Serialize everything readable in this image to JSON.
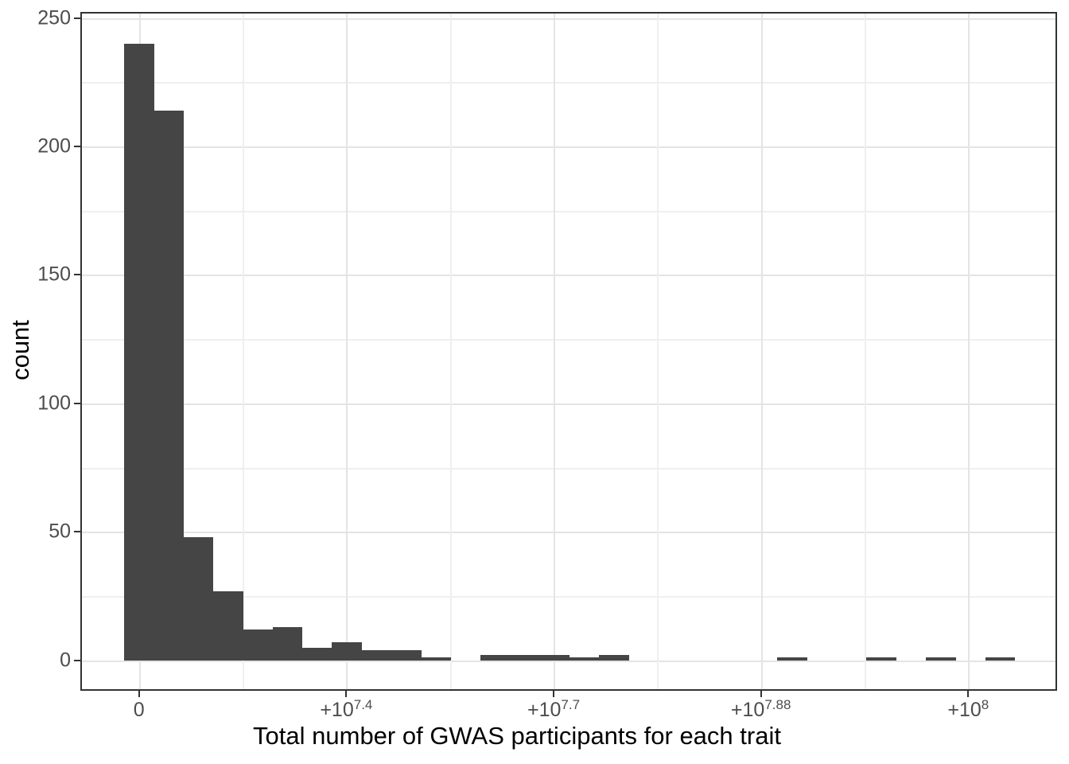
{
  "chart_data": {
    "type": "bar",
    "subtype": "histogram",
    "title": "",
    "xlabel": "Total number of GWAS participants for each trait",
    "ylabel": "count",
    "x_ticks": [
      {
        "base": "0",
        "sup": ""
      },
      {
        "base": "+10",
        "sup": "7.4"
      },
      {
        "base": "+10",
        "sup": "7.7"
      },
      {
        "base": "+10",
        "sup": "7.88"
      },
      {
        "base": "+10",
        "sup": "8"
      }
    ],
    "y_ticks": [
      250,
      200,
      150,
      100,
      50,
      0
    ],
    "bin_counts": [
      240,
      214,
      48,
      27,
      12,
      13,
      5,
      7,
      4,
      4,
      1,
      0,
      2,
      2,
      2,
      1,
      2,
      0,
      0,
      0,
      0,
      0,
      1,
      0,
      0,
      1,
      0,
      1,
      0,
      1
    ],
    "ylim": [
      -12,
      252
    ],
    "grid": true,
    "legend": "none",
    "colors": {
      "bar_fill": "#454545",
      "grid_major": "#E4E4E4",
      "grid_minor": "#EFEFEF",
      "axis_text": "#4D4D4D",
      "axis_title": "#000000",
      "panel_border": "#333333",
      "background": "#FFFFFF"
    }
  }
}
